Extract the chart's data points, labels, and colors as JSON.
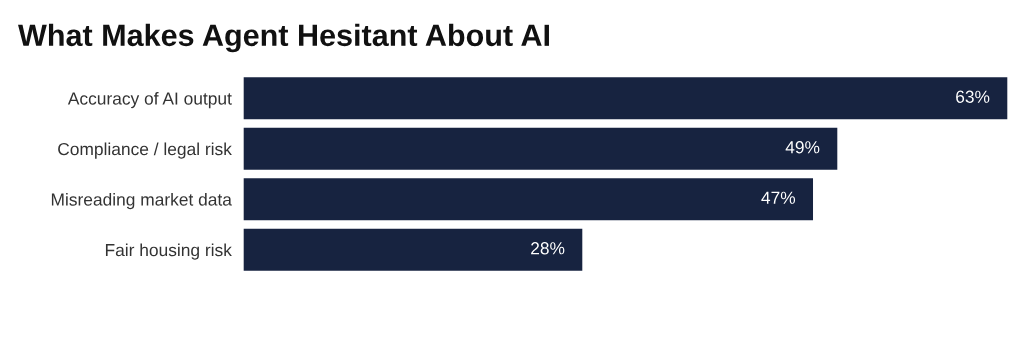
{
  "chart_data": {
    "type": "bar",
    "orientation": "horizontal",
    "title": "What Makes Agent Hesitant About AI",
    "categories": [
      "Accuracy of AI output",
      "Compliance / legal risk",
      "Misreading market data",
      "Fair housing risk"
    ],
    "values": [
      63,
      49,
      47,
      28
    ],
    "value_labels": [
      "63%",
      "49%",
      "47%",
      "28%"
    ],
    "color": "#172340",
    "grid": false,
    "legend": false
  }
}
